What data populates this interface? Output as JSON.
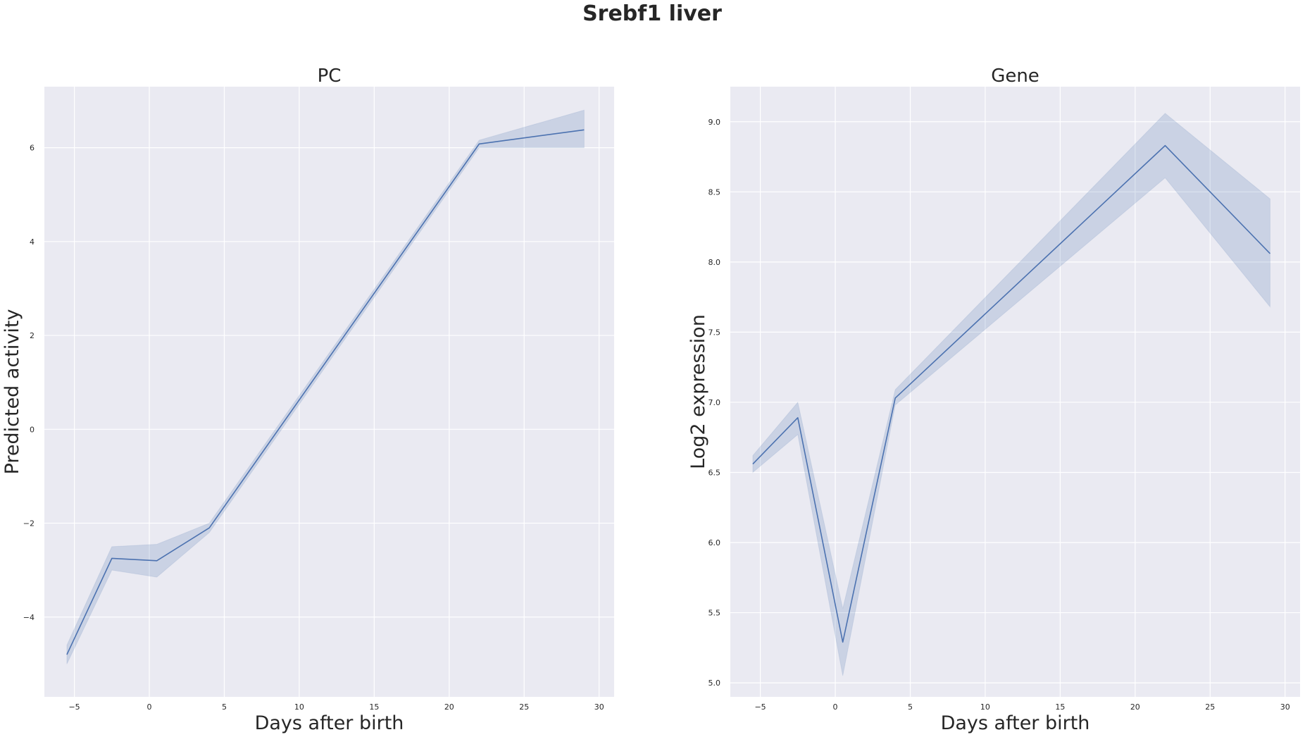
{
  "figure": {
    "title": "Srebf1 liver"
  },
  "colors": {
    "background": "#eaeaf2",
    "grid": "#ffffff",
    "line": "#4c72b0",
    "band": "#4c72b0"
  },
  "chart_data": [
    {
      "type": "line",
      "title": "PC",
      "xlabel": "Days after birth",
      "ylabel": "Predicted activity",
      "xlim": [
        -7,
        31
      ],
      "ylim": [
        -5.7,
        7.3
      ],
      "xticks": [
        -5,
        0,
        5,
        10,
        15,
        20,
        25,
        30
      ],
      "yticks": [
        -4,
        -2,
        0,
        2,
        4,
        6
      ],
      "grid": true,
      "series": [
        {
          "x": [
            -5.5,
            -2.5,
            0.5,
            4,
            22,
            29
          ],
          "y": [
            -4.8,
            -2.75,
            -2.8,
            -2.1,
            6.08,
            6.38
          ],
          "ci_lower": [
            -5.0,
            -3.0,
            -3.15,
            -2.2,
            6.0,
            6.0
          ],
          "ci_upper": [
            -4.6,
            -2.5,
            -2.45,
            -2.0,
            6.16,
            6.8
          ]
        }
      ]
    },
    {
      "type": "line",
      "title": "Gene",
      "xlabel": "Days after birth",
      "ylabel": "Log2 expression",
      "xlim": [
        -7,
        31
      ],
      "ylim": [
        4.9,
        9.25
      ],
      "xticks": [
        -5,
        0,
        5,
        10,
        15,
        20,
        25,
        30
      ],
      "yticks": [
        5.0,
        5.5,
        6.0,
        6.5,
        7.0,
        7.5,
        8.0,
        8.5,
        9.0
      ],
      "grid": true,
      "series": [
        {
          "x": [
            -5.5,
            -2.5,
            0.5,
            4,
            22,
            29
          ],
          "y": [
            6.56,
            6.89,
            5.29,
            7.03,
            8.83,
            8.06
          ],
          "ci_lower": [
            6.5,
            6.77,
            5.05,
            6.98,
            8.6,
            7.68
          ],
          "ci_upper": [
            6.62,
            7.0,
            5.53,
            7.09,
            9.06,
            8.45
          ]
        }
      ]
    }
  ]
}
